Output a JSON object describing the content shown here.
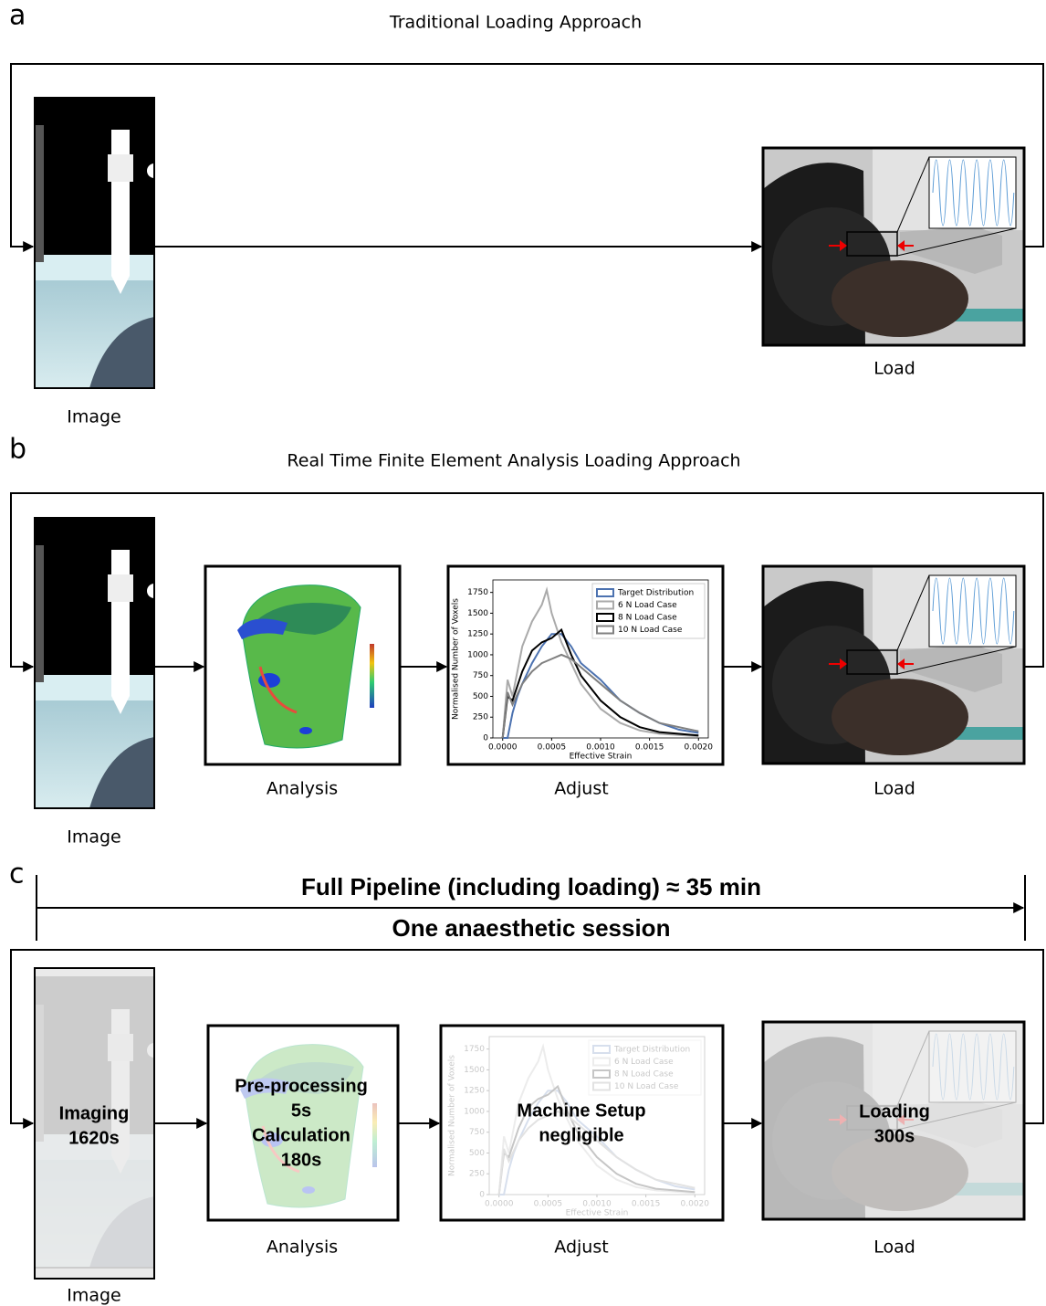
{
  "panels": [
    {
      "label": "a",
      "title": "Traditional Loading Approach",
      "steps": [
        "Image",
        "Load"
      ]
    },
    {
      "label": "b",
      "title": "Real Time Finite Element Analysis Loading Approach",
      "steps": [
        "Image",
        "Analysis",
        "Adjust",
        "Load"
      ]
    },
    {
      "label": "c",
      "timeline": {
        "total": "Full Pipeline (including loading) ≈ 35 min",
        "session": "One anaesthetic session"
      },
      "steps": [
        "Image",
        "Analysis",
        "Adjust",
        "Load"
      ],
      "durations": [
        [
          "Imaging",
          "1620s"
        ],
        [
          "Pre-processing",
          "5s",
          "Calculation",
          "180s"
        ],
        [
          "Machine Setup",
          "negligible"
        ],
        [
          "Loading",
          "300s"
        ]
      ]
    }
  ],
  "strain_chart": {
    "type": "line",
    "xlabel": "Effective Strain",
    "ylabel": "Normalised Number of Voxels",
    "xlim": [
      -0.0001,
      0.0021
    ],
    "ylim": [
      0,
      1900
    ],
    "xticks": [
      {
        "value": 0,
        "label": "0.0000"
      },
      {
        "value": 0.0005,
        "label": "0.0005"
      },
      {
        "value": 0.001,
        "label": "0.0010"
      },
      {
        "value": 0.0015,
        "label": "0.0015"
      },
      {
        "value": 0.002,
        "label": "0.0020"
      }
    ],
    "yticks": [
      0,
      250,
      500,
      750,
      1000,
      1250,
      1500,
      1750
    ],
    "series": [
      {
        "name": "Target Distribution",
        "color": "#4c72b0",
        "x": [
          0,
          5e-05,
          0.0001,
          0.00015,
          0.0002,
          0.0003,
          0.0004,
          0.0005,
          0.0006,
          0.0007,
          0.0008,
          0.001,
          0.0012,
          0.0014,
          0.0016,
          0.0018,
          0.002
        ],
        "values": [
          0,
          0,
          300,
          500,
          650,
          900,
          1100,
          1250,
          1250,
          1100,
          900,
          700,
          450,
          300,
          180,
          100,
          60
        ]
      },
      {
        "name": "6 N Load Case",
        "color": "#aaaaaa",
        "x": [
          0,
          5e-05,
          0.0001,
          0.0002,
          0.0003,
          0.0004,
          0.00045,
          0.0005,
          0.0006,
          0.0007,
          0.0008,
          0.001,
          0.0012,
          0.0014,
          0.0016,
          0.002
        ],
        "values": [
          0,
          700,
          500,
          1100,
          1400,
          1600,
          1780,
          1500,
          1150,
          900,
          650,
          350,
          180,
          90,
          50,
          20
        ]
      },
      {
        "name": "8 N Load Case",
        "color": "#000000",
        "x": [
          0,
          5e-05,
          0.0001,
          0.0002,
          0.0003,
          0.0004,
          0.0005,
          0.0006,
          0.0007,
          0.0008,
          0.001,
          0.0012,
          0.0014,
          0.0016,
          0.002
        ],
        "values": [
          0,
          500,
          450,
          800,
          1050,
          1150,
          1200,
          1300,
          1000,
          750,
          450,
          250,
          130,
          70,
          30
        ]
      },
      {
        "name": "10 N Load Case",
        "color": "#808080",
        "x": [
          0,
          5e-05,
          0.0001,
          0.0002,
          0.0003,
          0.0004,
          0.0005,
          0.0006,
          0.0007,
          0.0008,
          0.001,
          0.0012,
          0.0014,
          0.0016,
          0.002
        ],
        "values": [
          0,
          550,
          400,
          650,
          800,
          900,
          950,
          1000,
          950,
          850,
          650,
          450,
          300,
          180,
          80
        ]
      }
    ]
  }
}
